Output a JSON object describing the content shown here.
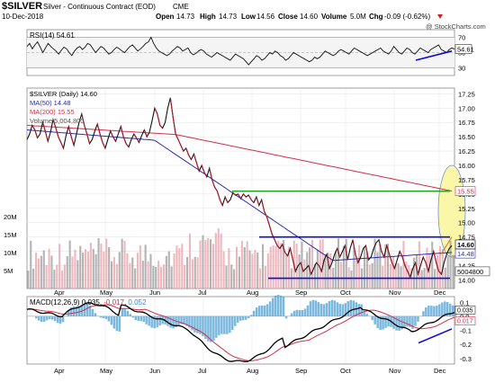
{
  "header": {
    "symbol": "$SILVER",
    "name": "Silver - Continuous Contract (EOD)",
    "exchange": "CME",
    "date": "10-Dec-2018",
    "open_label": "Open",
    "open": "14.73",
    "high_label": "High",
    "high": "14.73",
    "low_label": "Low",
    "low": "14.56",
    "close_label": "Close",
    "close": "14.60",
    "volume_label": "Volume",
    "volume": "5.0M",
    "chg_label": "Chg",
    "chg": "-0.09 (-0.62%)",
    "watermark": "@ StockCharts.com"
  },
  "colors": {
    "price": "#000000",
    "ma50": "#2b2bb0",
    "ma200": "#d0304a",
    "volume_up": "#9a9a9a",
    "volume_down": "#e8a0a8",
    "resistance": "#0a0ad8",
    "support_green": "#22aa22",
    "ellipse": "#fbf7a8",
    "macd_hist": "#5aa6d6",
    "grid": "#e2e2e2"
  },
  "chart_data": [
    {
      "type": "line",
      "title": "RSI(14) 54.61",
      "series": [
        {
          "name": "RSI(14)",
          "values": [
            58,
            62,
            55,
            60,
            64,
            57,
            50,
            56,
            62,
            58,
            55,
            52,
            48,
            53,
            57,
            55,
            50,
            46,
            52,
            56,
            58,
            54,
            57,
            62,
            60,
            55,
            50,
            54,
            58,
            56,
            52,
            48,
            50,
            54,
            57,
            55,
            52,
            50,
            54,
            58,
            60,
            56,
            52,
            55,
            58,
            62,
            64,
            70,
            62,
            56,
            52,
            50,
            48,
            46,
            48,
            52,
            55,
            58,
            56,
            52,
            54,
            56,
            50,
            47,
            49,
            52,
            54,
            52,
            48,
            46,
            44,
            47,
            50,
            48,
            46,
            44,
            42,
            40,
            44,
            48,
            46,
            44,
            42,
            38,
            34,
            38,
            42,
            46,
            44,
            40,
            42,
            46,
            50,
            48,
            52,
            50,
            46,
            44,
            40,
            42,
            46,
            50,
            48,
            46,
            44,
            42,
            40,
            38,
            40,
            44,
            42,
            44,
            48,
            52,
            50,
            48,
            46,
            48,
            52,
            54,
            52,
            50,
            48,
            52,
            56,
            54,
            52,
            50,
            48,
            46,
            48,
            50,
            52,
            54,
            56,
            52,
            50,
            48,
            52,
            58,
            54,
            50,
            48,
            52,
            56,
            54,
            50,
            48,
            52,
            56,
            54,
            52,
            50,
            54,
            56,
            58,
            60,
            54,
            52,
            50,
            54,
            56,
            54.61
          ]
        }
      ],
      "ylim": [
        20,
        80
      ],
      "y_ticks": [
        30,
        50,
        70
      ],
      "value_label": "54.61"
    },
    {
      "type": "line",
      "legend": [
        "$SILVER (Daily) 14.60",
        "MA(50) 14.48",
        "MA(200) 15.55",
        "Volume 5,004,800"
      ],
      "x_months": [
        "Apr",
        "May",
        "Jun",
        "Jul",
        "Aug",
        "Sep",
        "Oct",
        "Nov",
        "Dec"
      ],
      "ylim": [
        13.85,
        17.35
      ],
      "y_ticks": [
        14.0,
        14.25,
        14.5,
        14.75,
        15.0,
        15.25,
        15.5,
        15.75,
        16.0,
        16.25,
        16.5,
        16.75,
        17.0,
        17.25
      ],
      "volume_ticks": [
        "5M",
        "10M",
        "15M",
        "20M"
      ],
      "volume_lim": [
        0,
        25000000
      ],
      "price": [
        16.45,
        16.55,
        16.7,
        16.62,
        16.48,
        16.55,
        16.75,
        16.6,
        16.42,
        16.58,
        16.8,
        16.66,
        16.5,
        16.4,
        16.3,
        16.52,
        16.68,
        16.5,
        16.35,
        16.55,
        16.75,
        16.9,
        16.7,
        16.55,
        16.38,
        16.45,
        16.6,
        16.72,
        16.55,
        16.4,
        16.3,
        16.45,
        16.6,
        16.5,
        16.42,
        16.55,
        16.68,
        16.5,
        16.38,
        16.32,
        16.45,
        16.55,
        16.48,
        16.4,
        16.52,
        16.62,
        16.5,
        16.58,
        16.78,
        17.0,
        16.9,
        16.7,
        16.65,
        16.75,
        17.0,
        17.18,
        16.85,
        16.55,
        16.45,
        16.35,
        16.25,
        16.3,
        16.18,
        16.1,
        16.2,
        16.05,
        15.9,
        16.0,
        15.88,
        15.8,
        15.95,
        15.75,
        15.62,
        15.55,
        15.4,
        15.3,
        15.45,
        15.35,
        15.4,
        15.52,
        15.48,
        15.5,
        15.42,
        15.5,
        15.45,
        15.48,
        15.4,
        15.35,
        15.45,
        15.3,
        15.4,
        15.2,
        15.1,
        14.95,
        14.8,
        14.7,
        14.6,
        14.55,
        14.62,
        14.48,
        14.42,
        14.55,
        14.35,
        14.15,
        14.25,
        14.3,
        14.15,
        14.2,
        14.25,
        14.1,
        14.2,
        14.3,
        14.25,
        14.15,
        14.35,
        14.45,
        14.2,
        14.3,
        14.45,
        14.55,
        14.4,
        14.5,
        14.6,
        14.35,
        14.55,
        14.7,
        14.45,
        14.3,
        14.4,
        14.55,
        14.6,
        14.35,
        14.4,
        14.55,
        14.65,
        14.7,
        14.5,
        14.4,
        14.6,
        14.45,
        14.3,
        14.2,
        14.35,
        14.5,
        14.4,
        14.25,
        14.15,
        14.05,
        14.2,
        14.3,
        14.1,
        14.25,
        14.4,
        14.3,
        14.15,
        14.35,
        14.5,
        14.3,
        14.15,
        14.1,
        14.3,
        14.45,
        14.55,
        14.6
      ],
      "ma50_start": 16.62,
      "ma50_end": 14.48,
      "ma200_start": 16.7,
      "ma200_end": 15.55,
      "levels": [
        {
          "name": "resistance",
          "value": 14.75
        },
        {
          "name": "support",
          "value": 14.05
        },
        {
          "name": "mid",
          "value": 15.55
        }
      ],
      "price_tags": [
        "15.55",
        "14.60",
        "14.48"
      ],
      "volume_tag": "5004800"
    },
    {
      "type": "line",
      "title": "MACD(12,26,9) 0.035, -0.017, 0.052",
      "y_ticks": [
        0.1,
        0.0,
        -0.1,
        -0.2,
        -0.3
      ],
      "ylim": [
        -0.34,
        0.14
      ],
      "macd_tags": [
        "0.035",
        "0.017"
      ]
    }
  ]
}
